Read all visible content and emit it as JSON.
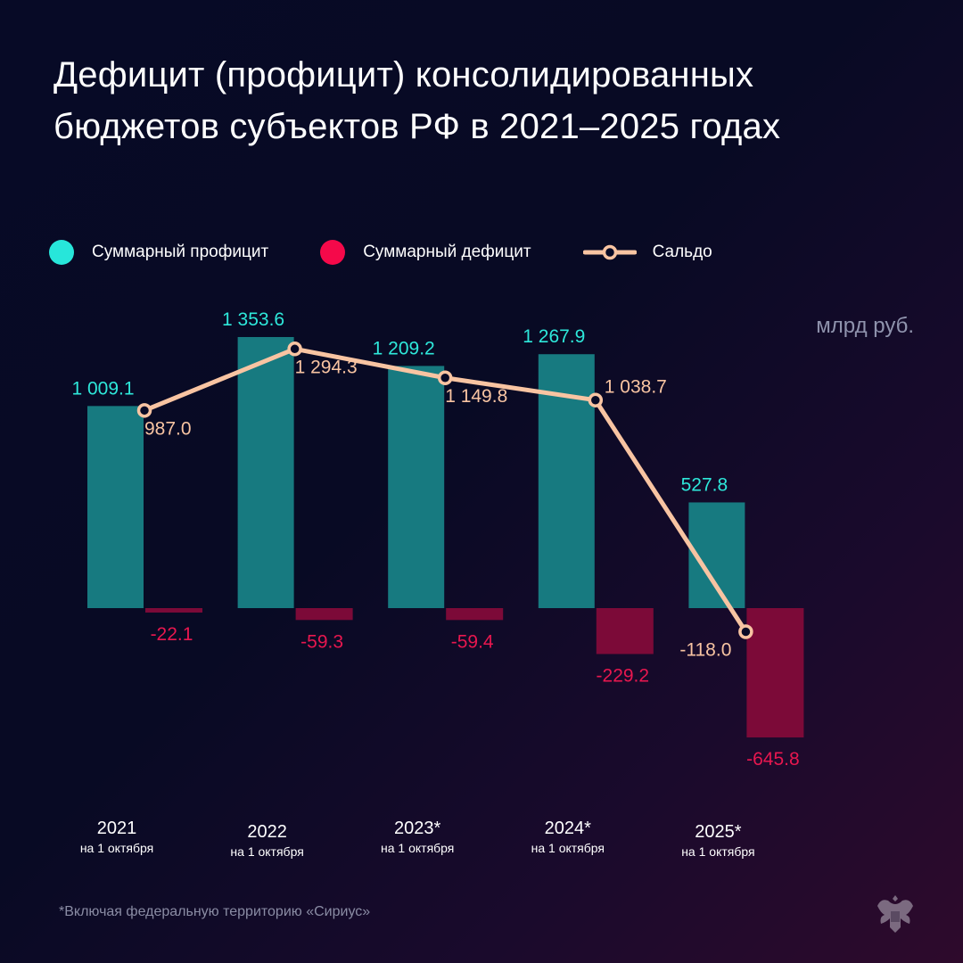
{
  "title": "Дефицит (профицит) консолидированных бюджетов субъектов РФ в 2021–2025 годах",
  "unit": "млрд руб.",
  "footnote": "*Включая федеральную территорию «Сириус»",
  "colors": {
    "profit": "#177a80",
    "profit_label": "#2ee8da",
    "deficit": "#7c0a38",
    "deficit_label": "#e8174f",
    "saldo": "#f8c4a2",
    "legend_profit": "#27e6da",
    "legend_deficit": "#f5094a"
  },
  "chart_data": {
    "type": "bar",
    "categories": [
      "2021",
      "2022",
      "2023*",
      "2024*",
      "2025*"
    ],
    "category_sublabels": [
      "на 1 октября",
      "на 1 октября",
      "на 1 октября",
      "на 1 октября",
      "на 1 октября"
    ],
    "series": [
      {
        "name": "Суммарный профицит",
        "type": "bar",
        "values": [
          1009.1,
          1353.6,
          1209.2,
          1267.9,
          527.8
        ],
        "labels": [
          "1 009.1",
          "1 353.6",
          "1 209.2",
          "1 267.9",
          "527.8"
        ]
      },
      {
        "name": "Суммарный дефицит",
        "type": "bar",
        "values": [
          -22.1,
          -59.3,
          -59.4,
          -229.2,
          -645.8
        ],
        "labels": [
          "-22.1",
          "-59.3",
          "-59.4",
          "-229.2",
          "-645.8"
        ]
      },
      {
        "name": "Сальдо",
        "type": "line",
        "values": [
          987.0,
          1294.3,
          1149.8,
          1038.7,
          -118.0
        ],
        "labels": [
          "987.0",
          "1 294.3",
          "1 149.8",
          "1 038.7",
          "-118.0"
        ]
      }
    ],
    "legend_position": "top-left",
    "grid": false
  }
}
